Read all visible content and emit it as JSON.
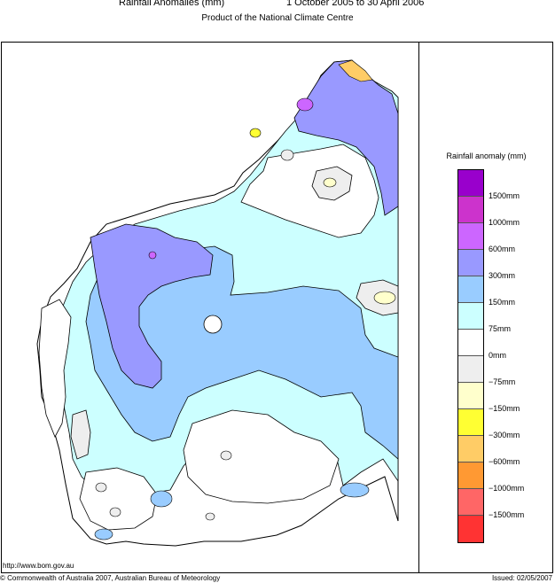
{
  "header": {
    "title": "Rainfall Anomalies (mm)",
    "period": "1 October 2005 to 30 April 2006",
    "subtitle": "Product of the National Climate Centre"
  },
  "legend": {
    "title": "Rainfall anomaly (mm)",
    "classes": [
      {
        "color": "#9900cc",
        "label": "1500mm"
      },
      {
        "color": "#cc33cc",
        "label": "1000mm"
      },
      {
        "color": "#cc66ff",
        "label": "600mm"
      },
      {
        "color": "#9999ff",
        "label": "300mm"
      },
      {
        "color": "#99ccff",
        "label": "150mm"
      },
      {
        "color": "#ccffff",
        "label": "75mm"
      },
      {
        "color": "#ffffff",
        "label": "0mm"
      },
      {
        "color": "#eeeeee",
        "label": "−75mm"
      },
      {
        "color": "#ffffcc",
        "label": "−150mm"
      },
      {
        "color": "#ffff33",
        "label": "−300mm"
      },
      {
        "color": "#ffcc66",
        "label": "−600mm"
      },
      {
        "color": "#ff9933",
        "label": "−1000mm"
      },
      {
        "color": "#ff6666",
        "label": "−1500mm"
      },
      {
        "color": "#ff3333",
        "label": ""
      }
    ]
  },
  "footer": {
    "url": "http://www.bom.gov.au",
    "copyright": "© Commonwealth of Australia 2007, Australian Bureau of Meteorology",
    "issued": "Issued: 02/05/2007"
  }
}
